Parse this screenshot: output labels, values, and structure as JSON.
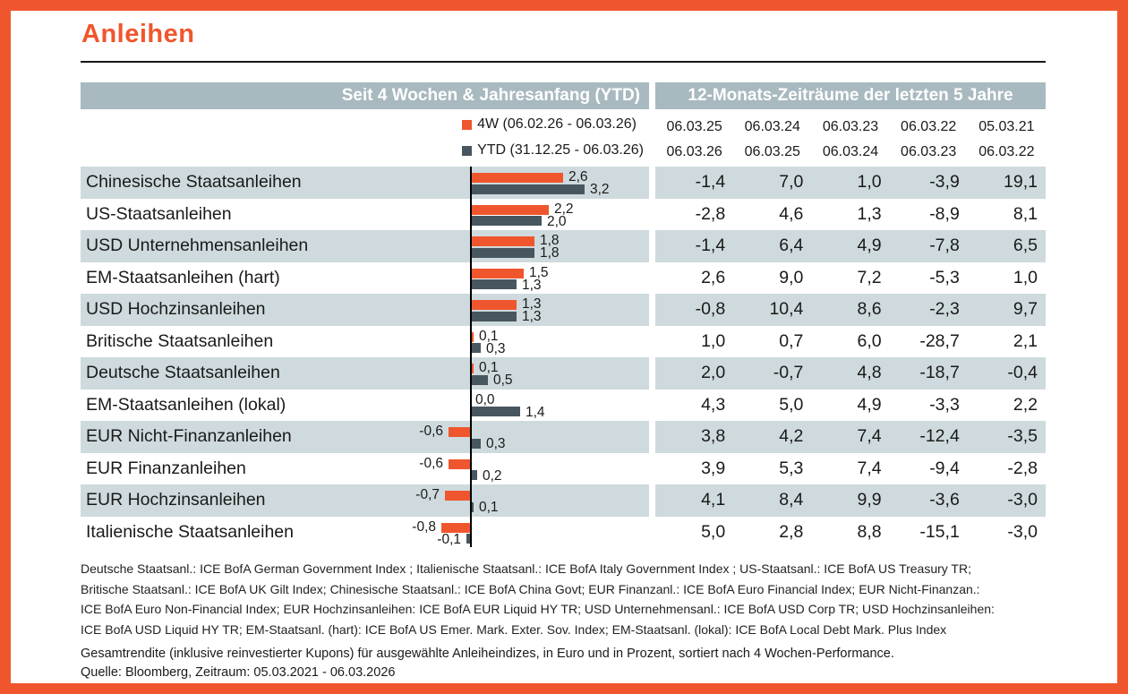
{
  "page": {
    "title": "Anleihen",
    "colors": {
      "accent": "#F0562D",
      "header_bg": "#A8B9BF",
      "row_shade": "#CEDADD",
      "bar_4w": "#F0562D",
      "bar_ytd": "#48565F"
    }
  },
  "left_panel": {
    "header": "Seit 4 Wochen & Jahresanfang (YTD)",
    "legend": [
      {
        "name": "4W",
        "label": "4W (06.02.26 - 06.03.26)"
      },
      {
        "name": "YTD",
        "label": "YTD (31.12.25 - 06.03.26)"
      }
    ]
  },
  "right_panel": {
    "header": "12-Monats-Zeiträume der letzten 5 Jahre",
    "period_columns": [
      {
        "from": "06.03.25",
        "to": "06.03.26"
      },
      {
        "from": "06.03.24",
        "to": "06.03.25"
      },
      {
        "from": "06.03.23",
        "to": "06.03.24"
      },
      {
        "from": "06.03.22",
        "to": "06.03.23"
      },
      {
        "from": "05.03.21",
        "to": "06.03.22"
      }
    ]
  },
  "chart_data": {
    "type": "bar",
    "orientation": "horizontal",
    "title": "Anleihen",
    "unit": "percent, total return in EUR",
    "sorted_by": "4 Wochen-Performance",
    "xlim": [
      -1.2,
      3.6
    ],
    "categories": [
      "Chinesische Staatsanleihen",
      "US-Staatsanleihen",
      "USD Unternehmensanleihen",
      "EM-Staatsanleihen (hart)",
      "USD Hochzinsanleihen",
      "Britische Staatsanleihen",
      "Deutsche Staatsanleihen",
      "EM-Staatsanleihen (lokal)",
      "EUR Nicht-Finanzanleihen",
      "EUR Finanzanleihen",
      "EUR Hochzinsanleihen",
      "Italienische Staatsanleihen"
    ],
    "series": [
      {
        "name": "4W (06.02.26 - 06.03.26)",
        "color": "#F0562D",
        "values": [
          2.6,
          2.2,
          1.8,
          1.5,
          1.3,
          0.1,
          0.1,
          0.0,
          -0.6,
          -0.6,
          -0.7,
          -0.8
        ]
      },
      {
        "name": "YTD (31.12.25 - 06.03.26)",
        "color": "#48565F",
        "values": [
          3.2,
          2.0,
          1.8,
          1.3,
          1.3,
          0.3,
          0.5,
          1.4,
          0.3,
          0.2,
          0.1,
          -0.1
        ]
      }
    ]
  },
  "table": {
    "rows": [
      {
        "label": "Chinesische Staatsanleihen",
        "w4": "2,6",
        "ytd": "3,2",
        "periods": [
          "-1,4",
          "7,0",
          "1,0",
          "-3,9",
          "19,1"
        ]
      },
      {
        "label": "US-Staatsanleihen",
        "w4": "2,2",
        "ytd": "2,0",
        "periods": [
          "-2,8",
          "4,6",
          "1,3",
          "-8,9",
          "8,1"
        ]
      },
      {
        "label": "USD Unternehmensanleihen",
        "w4": "1,8",
        "ytd": "1,8",
        "periods": [
          "-1,4",
          "6,4",
          "4,9",
          "-7,8",
          "6,5"
        ]
      },
      {
        "label": "EM-Staatsanleihen (hart)",
        "w4": "1,5",
        "ytd": "1,3",
        "periods": [
          "2,6",
          "9,0",
          "7,2",
          "-5,3",
          "1,0"
        ]
      },
      {
        "label": "USD Hochzinsanleihen",
        "w4": "1,3",
        "ytd": "1,3",
        "periods": [
          "-0,8",
          "10,4",
          "8,6",
          "-2,3",
          "9,7"
        ]
      },
      {
        "label": "Britische Staatsanleihen",
        "w4": "0,1",
        "ytd": "0,3",
        "periods": [
          "1,0",
          "0,7",
          "6,0",
          "-28,7",
          "2,1"
        ]
      },
      {
        "label": "Deutsche Staatsanleihen",
        "w4": "0,1",
        "ytd": "0,5",
        "periods": [
          "2,0",
          "-0,7",
          "4,8",
          "-18,7",
          "-0,4"
        ]
      },
      {
        "label": "EM-Staatsanleihen (lokal)",
        "w4": "0,0",
        "ytd": "1,4",
        "periods": [
          "4,3",
          "5,0",
          "4,9",
          "-3,3",
          "2,2"
        ]
      },
      {
        "label": "EUR Nicht-Finanzanleihen",
        "w4": "-0,6",
        "ytd": "0,3",
        "periods": [
          "3,8",
          "4,2",
          "7,4",
          "-12,4",
          "-3,5"
        ]
      },
      {
        "label": "EUR Finanzanleihen",
        "w4": "-0,6",
        "ytd": "0,2",
        "periods": [
          "3,9",
          "5,3",
          "7,4",
          "-9,4",
          "-2,8"
        ]
      },
      {
        "label": "EUR Hochzinsanleihen",
        "w4": "-0,7",
        "ytd": "0,1",
        "periods": [
          "4,1",
          "8,4",
          "9,9",
          "-3,6",
          "-3,0"
        ]
      },
      {
        "label": "Italienische Staatsanleihen",
        "w4": "-0,8",
        "ytd": "-0,1",
        "periods": [
          "5,0",
          "2,8",
          "8,8",
          "-15,1",
          "-3,0"
        ]
      }
    ]
  },
  "footnotes": [
    "Deutsche Staatsanl.: ICE BofA German Government Index ; Italienische Staatsanl.: ICE BofA Italy Government Index ; US-Staatsanl.: ICE BofA US Treasury TR;",
    "Britische Staatsanl.: ICE BofA UK Gilt Index; Chinesische Staatsanl.: ICE BofA China Govt; EUR Finanzanl.: ICE BofA Euro Financial Index; EUR Nicht-Finanzan.:",
    "ICE BofA Euro Non-Financial Index; EUR Hochzinsanleihen: ICE BofA EUR Liquid HY TR; USD Unternehmensanl.: ICE BofA USD Corp TR; USD Hochzinsanleihen:",
    "ICE BofA USD Liquid HY TR; EM-Staatsanl. (hart): ICE BofA US Emer. Mark. Exter. Sov. Index; EM-Staatsanl. (lokal):  ICE BofA Local Debt Mark. Plus Index"
  ],
  "caption": "Gesamtrendite (inklusive reinvestierter Kupons) für ausgewählte Anleiheindizes, in Euro und in Prozent, sortiert nach 4 Wochen-Performance.",
  "source": "Quelle: Bloomberg, Zeitraum: 05.03.2021 - 06.03.2026"
}
